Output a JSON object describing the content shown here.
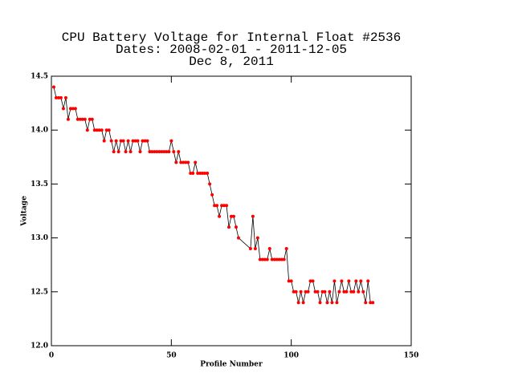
{
  "chart_data": {
    "type": "line",
    "title": [
      "CPU Battery Voltage for Internal Float #2536",
      "Dates:  2008-02-01 -  2011-12-05",
      "Dec  8, 2011"
    ],
    "xlabel": "Profile Number",
    "ylabel": "Voltage",
    "xlim": [
      0,
      150
    ],
    "xticks": [
      0,
      50,
      100,
      150
    ],
    "ylim": [
      12.0,
      14.5
    ],
    "yticks": [
      {
        "value": 12.0,
        "label": "12.0"
      },
      12.5,
      {
        "value": 13.0,
        "label": "13.0"
      },
      13.5,
      {
        "value": 14.0,
        "label": "14.0"
      },
      14.5
    ],
    "line_color": "#000000",
    "marker_color": "#ff0000",
    "x": [
      1,
      2,
      3,
      4,
      5,
      6,
      7,
      8,
      9,
      10,
      11,
      12,
      13,
      14,
      15,
      16,
      17,
      18,
      19,
      20,
      21,
      22,
      23,
      24,
      25,
      26,
      27,
      28,
      29,
      30,
      31,
      32,
      33,
      34,
      35,
      36,
      37,
      38,
      39,
      40,
      41,
      42,
      43,
      44,
      45,
      46,
      47,
      48,
      49,
      50,
      51,
      52,
      53,
      54,
      55,
      56,
      57,
      58,
      59,
      60,
      61,
      62,
      63,
      64,
      65,
      66,
      67,
      68,
      69,
      70,
      71,
      72,
      73,
      74,
      75,
      76,
      77,
      78,
      83,
      84,
      85,
      86,
      87,
      88,
      89,
      90,
      91,
      92,
      93,
      94,
      95,
      96,
      97,
      98,
      99,
      100,
      101,
      102,
      103,
      104,
      105,
      106,
      107,
      108,
      109,
      110,
      111,
      112,
      113,
      114,
      115,
      116,
      117,
      118,
      119,
      120,
      121,
      122,
      123,
      124,
      125,
      126,
      127,
      128,
      129,
      130,
      131,
      132,
      133,
      134
    ],
    "values": [
      14.4,
      14.3,
      14.3,
      14.3,
      14.2,
      14.3,
      14.1,
      14.2,
      14.2,
      14.2,
      14.1,
      14.1,
      14.1,
      14.1,
      14.0,
      14.1,
      14.1,
      14.0,
      14.0,
      14.0,
      14.0,
      13.9,
      14.0,
      14.0,
      13.9,
      13.8,
      13.9,
      13.8,
      13.9,
      13.9,
      13.8,
      13.9,
      13.8,
      13.9,
      13.9,
      13.9,
      13.8,
      13.9,
      13.9,
      13.9,
      13.8,
      13.8,
      13.8,
      13.8,
      13.8,
      13.8,
      13.8,
      13.8,
      13.8,
      13.9,
      13.8,
      13.7,
      13.8,
      13.7,
      13.7,
      13.7,
      13.7,
      13.6,
      13.6,
      13.7,
      13.6,
      13.6,
      13.6,
      13.6,
      13.6,
      13.5,
      13.4,
      13.3,
      13.3,
      13.2,
      13.3,
      13.3,
      13.3,
      13.1,
      13.2,
      13.2,
      13.1,
      13.0,
      12.9,
      13.2,
      12.9,
      13.0,
      12.8,
      12.8,
      12.8,
      12.8,
      12.9,
      12.8,
      12.8,
      12.8,
      12.8,
      12.8,
      12.8,
      12.9,
      12.6,
      12.6,
      12.5,
      12.5,
      12.4,
      12.5,
      12.4,
      12.5,
      12.5,
      12.6,
      12.6,
      12.5,
      12.5,
      12.4,
      12.5,
      12.5,
      12.4,
      12.5,
      12.4,
      12.6,
      12.4,
      12.5,
      12.6,
      12.5,
      12.5,
      12.6,
      12.5,
      12.5,
      12.6,
      12.5,
      12.6,
      12.5,
      12.4,
      12.6,
      12.4,
      12.4
    ]
  }
}
